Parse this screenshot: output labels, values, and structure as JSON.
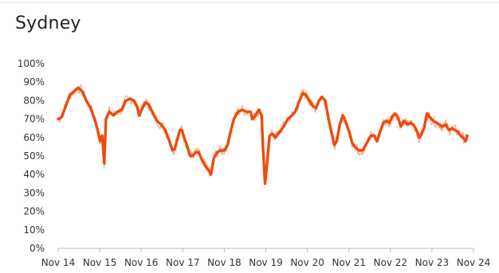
{
  "chart_data": {
    "type": "line",
    "title": "Sydney",
    "xlabel": "",
    "ylabel": "",
    "ylim": [
      0,
      100
    ],
    "y_ticks": [
      "0%",
      "10%",
      "20%",
      "30%",
      "40%",
      "50%",
      "60%",
      "70%",
      "80%",
      "90%",
      "100%"
    ],
    "x_ticks": [
      "Nov 14",
      "Nov 15",
      "Nov 16",
      "Nov 17",
      "Nov 18",
      "Nov 19",
      "Nov 20",
      "Nov 21",
      "Nov 22",
      "Nov 23",
      "Nov 24"
    ],
    "grid": false,
    "legend": "none",
    "colors": {
      "line": "#ee4b0b",
      "raw": "#f4a88a",
      "axis": "#bbbbbb"
    },
    "series": [
      {
        "values": [
          [
            2014.87,
            70
          ],
          [
            2014.95,
            71
          ],
          [
            2015.05,
            77
          ],
          [
            2015.15,
            83
          ],
          [
            2015.25,
            85
          ],
          [
            2015.35,
            87
          ],
          [
            2015.45,
            85
          ],
          [
            2015.55,
            80
          ],
          [
            2015.65,
            76
          ],
          [
            2015.75,
            70
          ],
          [
            2015.82,
            64
          ],
          [
            2015.88,
            58
          ],
          [
            2015.93,
            61
          ],
          [
            2015.98,
            46
          ],
          [
            2016.02,
            70
          ],
          [
            2016.1,
            74
          ],
          [
            2016.2,
            72
          ],
          [
            2016.3,
            74
          ],
          [
            2016.4,
            75
          ],
          [
            2016.5,
            80
          ],
          [
            2016.6,
            81
          ],
          [
            2016.7,
            80
          ],
          [
            2016.78,
            76
          ],
          [
            2016.82,
            72
          ],
          [
            2016.9,
            76
          ],
          [
            2016.97,
            79
          ],
          [
            2017.05,
            78
          ],
          [
            2017.15,
            73
          ],
          [
            2017.25,
            69
          ],
          [
            2017.35,
            67
          ],
          [
            2017.45,
            64
          ],
          [
            2017.55,
            58
          ],
          [
            2017.62,
            53
          ],
          [
            2017.68,
            54
          ],
          [
            2017.75,
            60
          ],
          [
            2017.8,
            64
          ],
          [
            2017.85,
            64
          ],
          [
            2017.9,
            60
          ],
          [
            2017.97,
            56
          ],
          [
            2018.05,
            50
          ],
          [
            2018.1,
            50
          ],
          [
            2018.18,
            52
          ],
          [
            2018.25,
            52
          ],
          [
            2018.33,
            48
          ],
          [
            2018.4,
            45
          ],
          [
            2018.5,
            42
          ],
          [
            2018.55,
            40
          ],
          [
            2018.62,
            49
          ],
          [
            2018.7,
            52
          ],
          [
            2018.78,
            53
          ],
          [
            2018.87,
            53
          ],
          [
            2018.95,
            56
          ],
          [
            2019.02,
            63
          ],
          [
            2019.1,
            70
          ],
          [
            2019.2,
            74
          ],
          [
            2019.3,
            75
          ],
          [
            2019.4,
            74
          ],
          [
            2019.5,
            74
          ],
          [
            2019.55,
            70
          ],
          [
            2019.62,
            72
          ],
          [
            2019.7,
            75
          ],
          [
            2019.77,
            72
          ],
          [
            2019.8,
            55
          ],
          [
            2019.85,
            35
          ],
          [
            2019.9,
            46
          ],
          [
            2019.96,
            61
          ],
          [
            2020.03,
            62
          ],
          [
            2020.1,
            60
          ],
          [
            2020.2,
            63
          ],
          [
            2020.3,
            66
          ],
          [
            2020.4,
            70
          ],
          [
            2020.5,
            72
          ],
          [
            2020.58,
            74
          ],
          [
            2020.68,
            80
          ],
          [
            2020.76,
            84
          ],
          [
            2020.84,
            83
          ],
          [
            2020.92,
            80
          ],
          [
            2021.0,
            77
          ],
          [
            2021.08,
            76
          ],
          [
            2021.15,
            80
          ],
          [
            2021.22,
            82
          ],
          [
            2021.3,
            80
          ],
          [
            2021.38,
            70
          ],
          [
            2021.46,
            62
          ],
          [
            2021.52,
            56
          ],
          [
            2021.58,
            58
          ],
          [
            2021.65,
            67
          ],
          [
            2021.72,
            72
          ],
          [
            2021.8,
            68
          ],
          [
            2021.88,
            63
          ],
          [
            2021.95,
            57
          ],
          [
            2022.05,
            54
          ],
          [
            2022.12,
            53
          ],
          [
            2022.2,
            53
          ],
          [
            2022.3,
            57
          ],
          [
            2022.4,
            61
          ],
          [
            2022.48,
            61
          ],
          [
            2022.55,
            58
          ],
          [
            2022.62,
            63
          ],
          [
            2022.7,
            68
          ],
          [
            2022.78,
            69
          ],
          [
            2022.85,
            68
          ],
          [
            2022.9,
            71
          ],
          [
            2022.98,
            73
          ],
          [
            2023.05,
            71
          ],
          [
            2023.12,
            66
          ],
          [
            2023.2,
            69
          ],
          [
            2023.28,
            67
          ],
          [
            2023.36,
            68
          ],
          [
            2023.42,
            67
          ],
          [
            2023.5,
            64
          ],
          [
            2023.56,
            60
          ],
          [
            2023.6,
            61
          ],
          [
            2023.68,
            65
          ],
          [
            2023.75,
            73
          ],
          [
            2023.82,
            71
          ],
          [
            2023.9,
            69
          ],
          [
            2023.98,
            68
          ],
          [
            2024.05,
            67
          ],
          [
            2024.12,
            66
          ],
          [
            2024.2,
            67
          ],
          [
            2024.28,
            64
          ],
          [
            2024.35,
            65
          ],
          [
            2024.42,
            64
          ],
          [
            2024.5,
            63
          ],
          [
            2024.56,
            61
          ],
          [
            2024.62,
            60
          ],
          [
            2024.68,
            58
          ],
          [
            2024.72,
            61
          ]
        ]
      }
    ]
  }
}
